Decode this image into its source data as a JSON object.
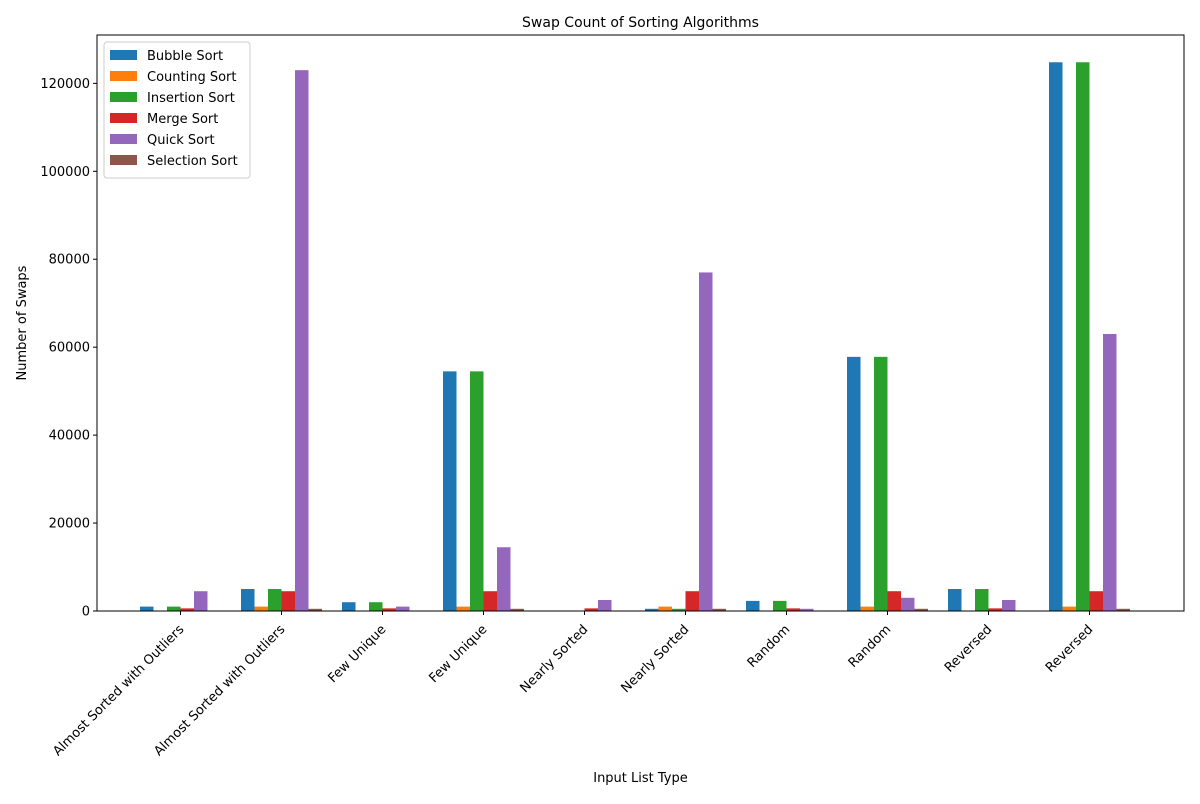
{
  "chart_data": {
    "type": "bar",
    "title": "Swap Count of Sorting Algorithms",
    "xlabel": "Input List Type",
    "ylabel": "Number of Swaps",
    "ylim": [
      0,
      131000
    ],
    "yticks": [
      0,
      20000,
      40000,
      60000,
      80000,
      100000,
      120000
    ],
    "grid": false,
    "legend_position": "top-left",
    "categories": [
      "Almost Sorted with Outliers",
      "Almost Sorted with Outliers",
      "Few Unique",
      "Few Unique",
      "Nearly Sorted",
      "Nearly Sorted",
      "Random",
      "Random",
      "Reversed",
      "Reversed"
    ],
    "series": [
      {
        "name": "Bubble Sort",
        "color": "#1f77b4",
        "values": [
          1000,
          5000,
          2000,
          54500,
          50,
          500,
          2300,
          57800,
          5000,
          124800
        ]
      },
      {
        "name": "Counting Sort",
        "color": "#ff7f0e",
        "values": [
          100,
          1000,
          100,
          1000,
          100,
          1000,
          100,
          1000,
          100,
          1000
        ]
      },
      {
        "name": "Insertion Sort",
        "color": "#2ca02c",
        "values": [
          1000,
          5000,
          2000,
          54500,
          50,
          500,
          2300,
          57800,
          5000,
          124800
        ]
      },
      {
        "name": "Merge Sort",
        "color": "#d62728",
        "values": [
          600,
          4500,
          600,
          4500,
          600,
          4500,
          600,
          4500,
          600,
          4500
        ]
      },
      {
        "name": "Quick Sort",
        "color": "#9467bd",
        "values": [
          4500,
          123000,
          1000,
          14500,
          2500,
          77000,
          500,
          3000,
          2500,
          63000
        ]
      },
      {
        "name": "Selection Sort",
        "color": "#8c564b",
        "values": [
          50,
          500,
          50,
          500,
          50,
          500,
          50,
          500,
          50,
          500
        ]
      }
    ]
  }
}
